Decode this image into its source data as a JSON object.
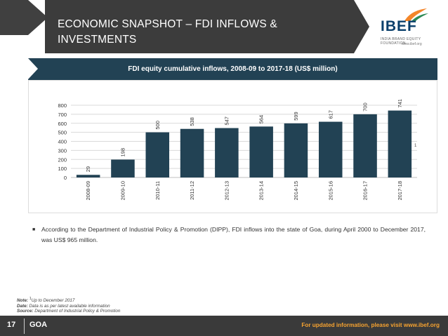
{
  "header": {
    "title_line1": "ECONOMIC SNAPSHOT – FDI INFLOWS &",
    "title_line2": "INVESTMENTS"
  },
  "logo": {
    "name": "IBEF",
    "tagline": "INDIA BRAND EQUITY FOUNDATION",
    "url": "www.ibef.org"
  },
  "chart_data": {
    "type": "bar",
    "title": "FDI equity cumulative inflows, 2008-09 to 2017-18 (US$ million)",
    "categories": [
      "2008-09",
      "2009-10",
      "2010-11",
      "2011-12",
      "2012-13",
      "2013-14",
      "2014-15",
      "2015-16",
      "2016-17",
      "2017-18"
    ],
    "values": [
      29,
      198,
      500,
      538,
      547,
      564,
      599,
      617,
      700,
      741
    ],
    "yticks": [
      0,
      100,
      200,
      300,
      400,
      500,
      600,
      700,
      800
    ],
    "ylim": [
      0,
      800
    ],
    "xlabel": "",
    "ylabel": "",
    "footnote_marker": "1",
    "bar_color": "#224254",
    "grid": true
  },
  "bullet_text": "According to the Department of Industrial Policy & Promotion (DIPP), FDI inflows into the state of Goa, during April 2000 to December 2017, was US$ 965 million.",
  "notes": {
    "note_label": "Note:",
    "note_sup": "1",
    "note_text": "Up to December 2017",
    "date_label": "Date:",
    "date_text": "Data is as per latest available information",
    "source_label": "Source:",
    "source_text": "Department of Industrial Policy & Promotion"
  },
  "footer": {
    "page_number": "17",
    "state": "GOA",
    "info": "For updated information, please visit www.ibef.org"
  }
}
